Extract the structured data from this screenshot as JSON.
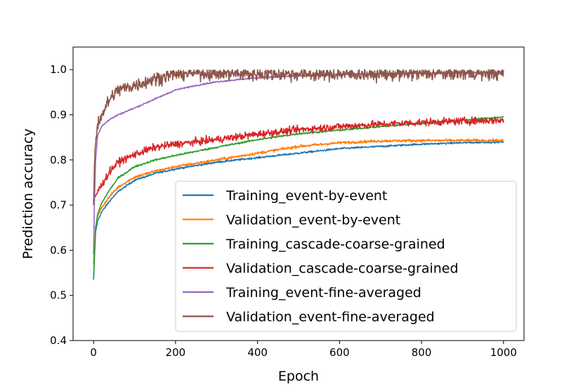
{
  "chart_data": {
    "type": "line",
    "title": "",
    "xlabel": "Epoch",
    "ylabel": "Prediction accuracy",
    "xlim": [
      -50,
      1050
    ],
    "ylim": [
      0.4,
      1.05
    ],
    "xticks": [
      0,
      200,
      400,
      600,
      800,
      1000
    ],
    "xtick_labels": [
      "0",
      "200",
      "400",
      "600",
      "800",
      "1000"
    ],
    "yticks": [
      0.4,
      0.5,
      0.6,
      0.7,
      0.8,
      0.9,
      1.0
    ],
    "ytick_labels": [
      "0.4",
      "0.5",
      "0.6",
      "0.7",
      "0.8",
      "0.9",
      "1.0"
    ],
    "grid": false,
    "legend_position": "bottom-right",
    "series": [
      {
        "name": "Training_event-by-event",
        "color": "#1f77b4",
        "noise": 0.002,
        "x": [
          0,
          5,
          10,
          20,
          40,
          60,
          100,
          150,
          200,
          300,
          400,
          500,
          600,
          700,
          800,
          900,
          1000
        ],
        "y": [
          0.535,
          0.64,
          0.665,
          0.685,
          0.71,
          0.73,
          0.755,
          0.77,
          0.78,
          0.795,
          0.805,
          0.815,
          0.825,
          0.83,
          0.835,
          0.838,
          0.84
        ]
      },
      {
        "name": "Validation_event-by-event",
        "color": "#ff7f0e",
        "noise": 0.003,
        "x": [
          0,
          5,
          10,
          20,
          40,
          60,
          100,
          150,
          200,
          300,
          400,
          500,
          600,
          700,
          800,
          900,
          1000
        ],
        "y": [
          0.57,
          0.65,
          0.675,
          0.695,
          0.72,
          0.74,
          0.762,
          0.775,
          0.785,
          0.8,
          0.815,
          0.83,
          0.838,
          0.842,
          0.843,
          0.843,
          0.843
        ]
      },
      {
        "name": "Training_cascade-coarse-grained",
        "color": "#2ca02c",
        "noise": 0.002,
        "x": [
          0,
          5,
          10,
          20,
          40,
          60,
          100,
          150,
          200,
          300,
          400,
          500,
          600,
          700,
          800,
          900,
          1000
        ],
        "y": [
          0.535,
          0.65,
          0.68,
          0.705,
          0.735,
          0.76,
          0.785,
          0.8,
          0.81,
          0.828,
          0.845,
          0.858,
          0.866,
          0.874,
          0.881,
          0.888,
          0.895
        ]
      },
      {
        "name": "Validation_cascade-coarse-grained",
        "color": "#d62728",
        "noise": 0.008,
        "x": [
          0,
          5,
          10,
          20,
          40,
          60,
          100,
          150,
          200,
          300,
          400,
          500,
          600,
          700,
          800,
          900,
          1000
        ],
        "y": [
          0.71,
          0.72,
          0.73,
          0.745,
          0.775,
          0.795,
          0.812,
          0.828,
          0.835,
          0.845,
          0.857,
          0.867,
          0.874,
          0.879,
          0.883,
          0.886,
          0.888
        ]
      },
      {
        "name": "Training_event-fine-averaged",
        "color": "#9467bd",
        "noise": 0.0015,
        "x": [
          0,
          2,
          5,
          10,
          20,
          40,
          60,
          100,
          150,
          200,
          250,
          300,
          400,
          500,
          600,
          700,
          800,
          900,
          1000
        ],
        "y": [
          0.59,
          0.7,
          0.8,
          0.855,
          0.875,
          0.89,
          0.9,
          0.915,
          0.935,
          0.955,
          0.965,
          0.973,
          0.982,
          0.986,
          0.989,
          0.991,
          0.992,
          0.993,
          0.994
        ]
      },
      {
        "name": "Validation_event-fine-averaged",
        "color": "#8c564b",
        "noise": 0.015,
        "x": [
          0,
          2,
          5,
          10,
          20,
          40,
          60,
          100,
          150,
          200,
          250,
          300,
          400,
          500,
          600,
          700,
          800,
          900,
          1000
        ],
        "y": [
          0.7,
          0.78,
          0.84,
          0.88,
          0.9,
          0.935,
          0.955,
          0.965,
          0.98,
          0.99,
          0.993,
          0.992,
          0.99,
          0.99,
          0.99,
          0.99,
          0.991,
          0.992,
          0.992
        ]
      }
    ]
  }
}
